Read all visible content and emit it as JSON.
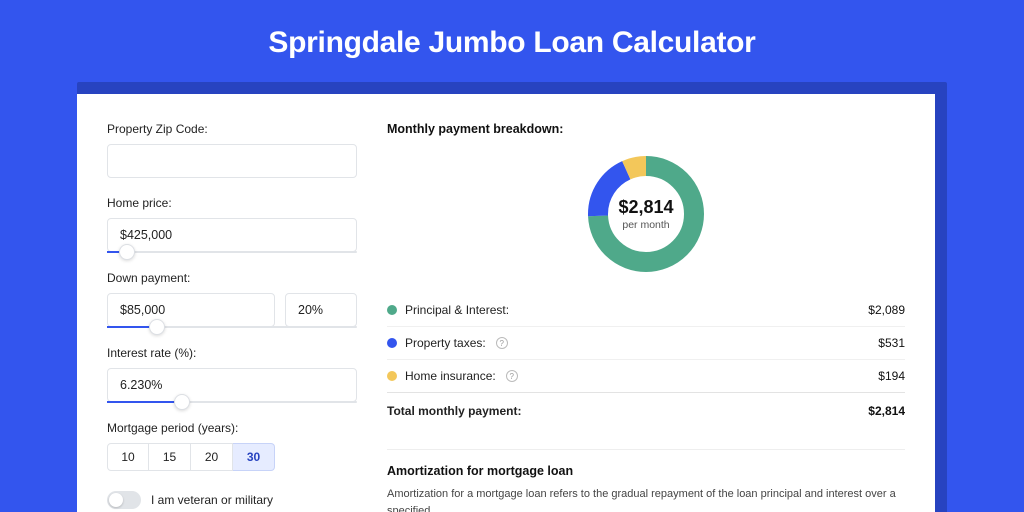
{
  "page": {
    "title": "Springdale Jumbo Loan Calculator",
    "bg_color": "#3355ee",
    "shadow_color": "#2743c0",
    "card_bg": "#ffffff"
  },
  "form": {
    "zip": {
      "label": "Property Zip Code:",
      "value": ""
    },
    "home_price": {
      "label": "Home price:",
      "value": "$425,000",
      "slider_pct": 8
    },
    "down_payment": {
      "label": "Down payment:",
      "value": "$85,000",
      "pct_value": "20%",
      "slider_pct": 20
    },
    "interest_rate": {
      "label": "Interest rate (%):",
      "value": "6.230%",
      "slider_pct": 30
    },
    "mortgage_period": {
      "label": "Mortgage period (years):",
      "options": [
        "10",
        "15",
        "20",
        "30"
      ],
      "selected": "30"
    },
    "veteran": {
      "label": "I am veteran or military",
      "on": false
    }
  },
  "breakdown": {
    "title": "Monthly payment breakdown:",
    "donut": {
      "amount": "$2,814",
      "sub": "per month",
      "slices": [
        {
          "label": "Principal & Interest:",
          "value": "$2,089",
          "num": 2089,
          "color": "#4fa98a",
          "info": false
        },
        {
          "label": "Property taxes:",
          "value": "$531",
          "num": 531,
          "color": "#3355ee",
          "info": true
        },
        {
          "label": "Home insurance:",
          "value": "$194",
          "num": 194,
          "color": "#f3c75a",
          "info": true
        }
      ],
      "track_color": "#eef0f3",
      "stroke_width": 20
    },
    "total": {
      "label": "Total monthly payment:",
      "value": "$2,814"
    }
  },
  "amortization": {
    "title": "Amortization for mortgage loan",
    "text": "Amortization for a mortgage loan refers to the gradual repayment of the loan principal and interest over a specified"
  }
}
